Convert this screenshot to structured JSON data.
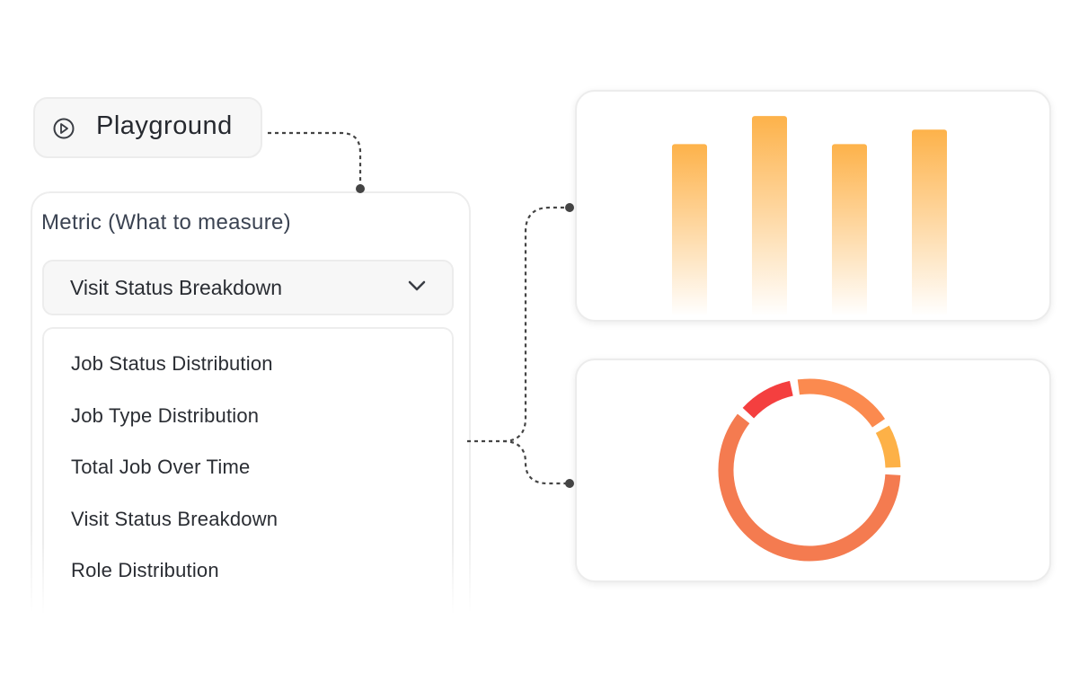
{
  "playground": "Playground",
  "metric": {
    "label": "Metric (What to measure)",
    "selected": "Visit Status Breakdown",
    "options": [
      "Job Status Distribution",
      "Job Type Distribution",
      "Total Job Over Time",
      "Visit Status Breakdown",
      "Role Distribution"
    ]
  },
  "chart_data": [
    {
      "type": "bar",
      "values": [
        190,
        221,
        190,
        206
      ],
      "ylim": [
        0,
        230
      ],
      "color": "#fdb24a"
    },
    {
      "type": "pie",
      "values": [
        19,
        9,
        61,
        11
      ],
      "colors": [
        "#fb8a4f",
        "#fdb147",
        "#f47b50",
        "#f43f3f"
      ]
    }
  ]
}
